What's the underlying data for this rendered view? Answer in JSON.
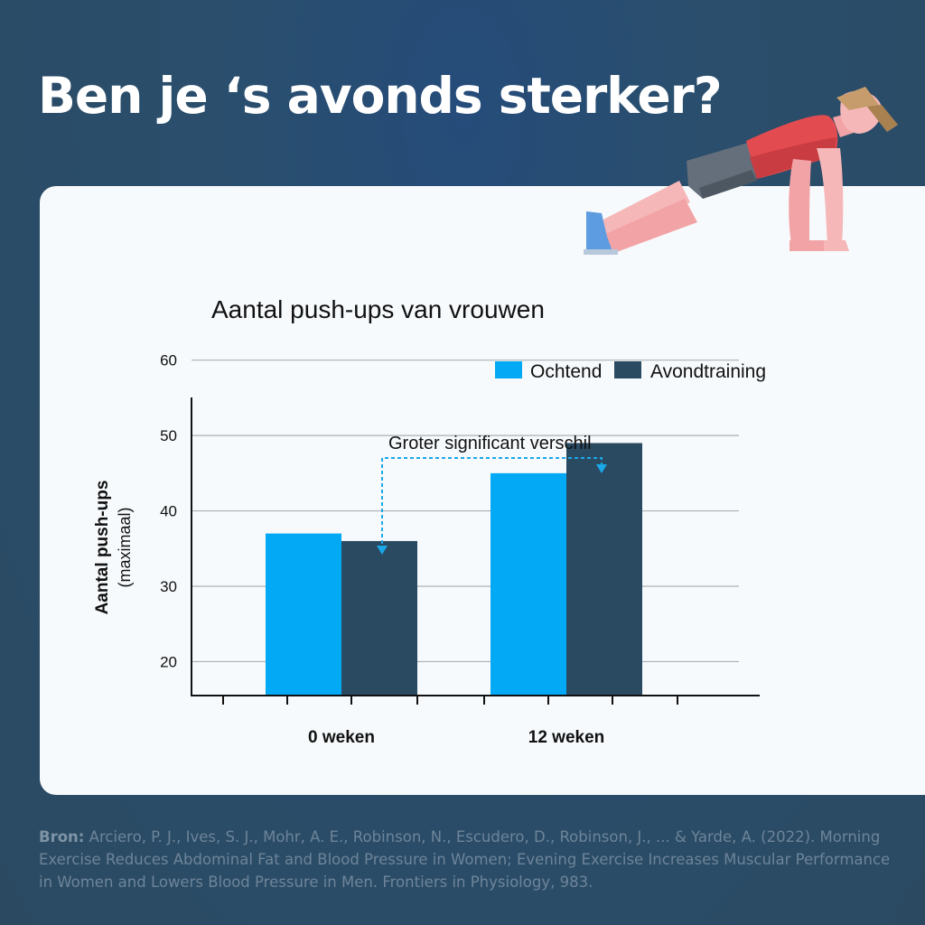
{
  "headline": "Ben je ‘s avonds sterker?",
  "colors": {
    "morning": "#03a9f4",
    "evening": "#2a4a62",
    "annotation": "#1aa8e8",
    "axis": "#111111",
    "grid": "#a9b0b6"
  },
  "illustration": {
    "icon": "push-up-person-icon"
  },
  "chart_data": {
    "type": "bar",
    "title": "Aantal push-ups van vrouwen",
    "xlabel": "",
    "ylabel": "Aantal push-ups",
    "ylabel_sub": "(maximaal)",
    "categories": [
      "0 weken",
      "12 weken"
    ],
    "series": [
      {
        "name": "Ochtend",
        "values": [
          37,
          45
        ]
      },
      {
        "name": "Avondtraining",
        "values": [
          36,
          49
        ]
      }
    ],
    "ylim": [
      15.5,
      62
    ],
    "yticks": [
      20,
      30,
      40,
      50,
      60
    ],
    "grid": true,
    "legend": "top-right",
    "annotation": "Groter significant verschil"
  },
  "source": {
    "label": "Bron:",
    "text": "Arciero, P. J., Ives, S. J., Mohr, A. E., Robinson, N., Escudero, D., Robinson, J., ... & Yarde, A. (2022). Morning Exercise Reduces Abdominal Fat and Blood Pressure in Women; Evening Exercise Increases Muscular Performance in Women and Lowers Blood Pressure in Men. Frontiers in Physiology, 983."
  }
}
